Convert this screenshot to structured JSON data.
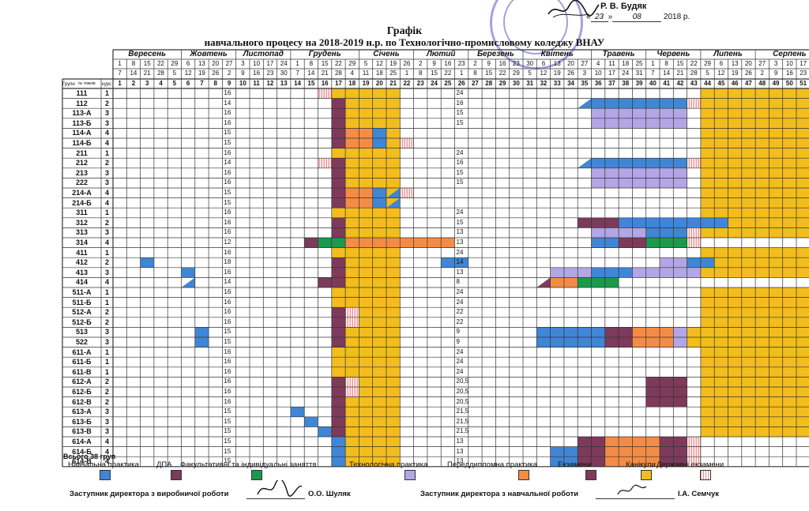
{
  "approval": {
    "approver": "Р. В. Будяк",
    "date_day": "23",
    "date_month": "08",
    "date_year": "2018 р."
  },
  "title": "Графік",
  "subtitle": "навчального процесу  на 2018-2019 н.р. по Технологічно-промисловому коледжу ВНАУ",
  "months": [
    "Вересень",
    "Жовтень",
    "Листопад",
    "Грудень",
    "Січень",
    "Лютий",
    "Березень",
    "Квітень",
    "Травень",
    "Червень",
    "Липень",
    "Серпень"
  ],
  "month_spans": [
    [
      1,
      5
    ],
    [
      6,
      9
    ],
    [
      10,
      13
    ],
    [
      14,
      18
    ],
    [
      19,
      22
    ],
    [
      23,
      26
    ],
    [
      27,
      30
    ],
    [
      31,
      35
    ],
    [
      36,
      39
    ],
    [
      40,
      43
    ],
    [
      44,
      47
    ],
    [
      48,
      52
    ]
  ],
  "dates_row1": [
    "1",
    "8",
    "15",
    "22",
    "29",
    "6",
    "13",
    "20",
    "27",
    "3",
    "10",
    "17",
    "24",
    "1",
    "8",
    "15",
    "22",
    "29",
    "5",
    "12",
    "19",
    "26",
    "2",
    "9",
    "16",
    "23",
    "2",
    "9",
    "16",
    "23",
    "30",
    "6",
    "13",
    "20",
    "27",
    "4",
    "11",
    "18",
    "25",
    "1",
    "8",
    "15",
    "22",
    "29",
    "6",
    "13",
    "20",
    "27",
    "3",
    "10",
    "17",
    "24"
  ],
  "dates_row2": [
    "7",
    "14",
    "21",
    "28",
    "5",
    "12",
    "19",
    "26",
    "2",
    "9",
    "16",
    "23",
    "30",
    "7",
    "14",
    "21",
    "28",
    "4",
    "11",
    "18",
    "25",
    "1",
    "8",
    "15",
    "22",
    "1",
    "8",
    "15",
    "22",
    "29",
    "5",
    "12",
    "19",
    "26",
    "3",
    "10",
    "17",
    "24",
    "31",
    "7",
    "14",
    "21",
    "28",
    "5",
    "12",
    "19",
    "26",
    "2",
    "9",
    "16",
    "23",
    "30"
  ],
  "header_group": "Групи",
  "header_weeks": "№ тижнів",
  "header_course": "курс",
  "groups": [
    {
      "name": "111",
      "course": "1",
      "n1": "16",
      "n2": "24"
    },
    {
      "name": "112",
      "course": "2",
      "n1": "14",
      "n2": "16"
    },
    {
      "name": "113-А",
      "course": "3",
      "n1": "16",
      "n2": "15"
    },
    {
      "name": "113-Б",
      "course": "3",
      "n1": "16",
      "n2": "15"
    },
    {
      "name": "114-А",
      "course": "4",
      "n1": "15",
      "n2": ""
    },
    {
      "name": "114-Б",
      "course": "4",
      "n1": "15",
      "n2": ""
    },
    {
      "name": "211",
      "course": "1",
      "n1": "16",
      "n2": "24"
    },
    {
      "name": "212",
      "course": "2",
      "n1": "14",
      "n2": "16"
    },
    {
      "name": "213",
      "course": "3",
      "n1": "16",
      "n2": "15"
    },
    {
      "name": "222",
      "course": "3",
      "n1": "16",
      "n2": "15"
    },
    {
      "name": "214-А",
      "course": "4",
      "n1": "15",
      "n2": ""
    },
    {
      "name": "214-Б",
      "course": "4",
      "n1": "15",
      "n2": ""
    },
    {
      "name": "311",
      "course": "1",
      "n1": "16",
      "n2": "24"
    },
    {
      "name": "312",
      "course": "2",
      "n1": "16",
      "n2": "15"
    },
    {
      "name": "313",
      "course": "3",
      "n1": "16",
      "n2": "13"
    },
    {
      "name": "314",
      "course": "4",
      "n1": "12",
      "n2": "13"
    },
    {
      "name": "411",
      "course": "1",
      "n1": "16",
      "n2": "24"
    },
    {
      "name": "412",
      "course": "2",
      "n1": "18",
      "n2": "14"
    },
    {
      "name": "413",
      "course": "3",
      "n1": "16",
      "n2": "13"
    },
    {
      "name": "414",
      "course": "4",
      "n1": "14",
      "n2": "8"
    },
    {
      "name": "511-А",
      "course": "1",
      "n1": "16",
      "n2": "24"
    },
    {
      "name": "511-Б",
      "course": "1",
      "n1": "16",
      "n2": "24"
    },
    {
      "name": "512-А",
      "course": "2",
      "n1": "16",
      "n2": "22"
    },
    {
      "name": "512-Б",
      "course": "2",
      "n1": "16",
      "n2": "22"
    },
    {
      "name": "513",
      "course": "3",
      "n1": "15",
      "n2": "9"
    },
    {
      "name": "522",
      "course": "3",
      "n1": "15",
      "n2": "9"
    },
    {
      "name": "611-А",
      "course": "1",
      "n1": "16",
      "n2": "24"
    },
    {
      "name": "611-Б",
      "course": "1",
      "n1": "16",
      "n2": "24"
    },
    {
      "name": "611-В",
      "course": "1",
      "n1": "16",
      "n2": "24"
    },
    {
      "name": "612-А",
      "course": "2",
      "n1": "16",
      "n2": "20,5"
    },
    {
      "name": "612-Б",
      "course": "2",
      "n1": "16",
      "n2": "20,5"
    },
    {
      "name": "612-В",
      "course": "2",
      "n1": "16",
      "n2": "20,5"
    },
    {
      "name": "613-А",
      "course": "3",
      "n1": "15",
      "n2": "21,5"
    },
    {
      "name": "613-Б",
      "course": "3",
      "n1": "15",
      "n2": "21,5"
    },
    {
      "name": "613-В",
      "course": "3",
      "n1": "15",
      "n2": "21,5"
    },
    {
      "name": "614-А",
      "course": "4",
      "n1": "15",
      "n2": "13"
    },
    {
      "name": "614-Б",
      "course": "4",
      "n1": "15",
      "n2": "13"
    },
    {
      "name": "614-В",
      "course": "4",
      "n1": "15",
      "n2": "13"
    }
  ],
  "total": "Всього 38 груп",
  "legend": [
    {
      "label": "Навчальна практика",
      "color": "#3f86d6",
      "pattern": "solid"
    },
    {
      "label": "ДПА",
      "color": "#7e3a5a",
      "pattern": "solid"
    },
    {
      "label": "Факультативні та індивідуальні заняття",
      "color": "#1a9a4a",
      "pattern": "solid"
    },
    {
      "label": "Технологічна практика",
      "color": "#b3a6e6",
      "pattern": "solid"
    },
    {
      "label": "Переддипломна практика",
      "color": "#f48c45",
      "pattern": "solid"
    },
    {
      "label": "Екзамени",
      "color": "#7e3a5a",
      "pattern": "solid"
    },
    {
      "label": "Канікули",
      "color": "#f2bd1d",
      "pattern": "solid"
    },
    {
      "label": "Державні екзамени",
      "color": "#f08a8a",
      "pattern": "hatch"
    }
  ],
  "signatures": {
    "left_role": "Заступник директора з виробничої роботи",
    "left_name": "О.О. Шуляк",
    "right_role": "Заступник директора з навчальної роботи",
    "right_name": "І.А. Семчук"
  },
  "colors": {
    "study": "#3f86d6",
    "dpa": "#7e3a5a",
    "fac": "#1a9a4a",
    "tech": "#b3a6e6",
    "pred": "#f48c45",
    "exam": "#7e3a5a",
    "vac": "#f2bd1d",
    "state": "#f08a8a",
    "grid": "#333333"
  }
}
